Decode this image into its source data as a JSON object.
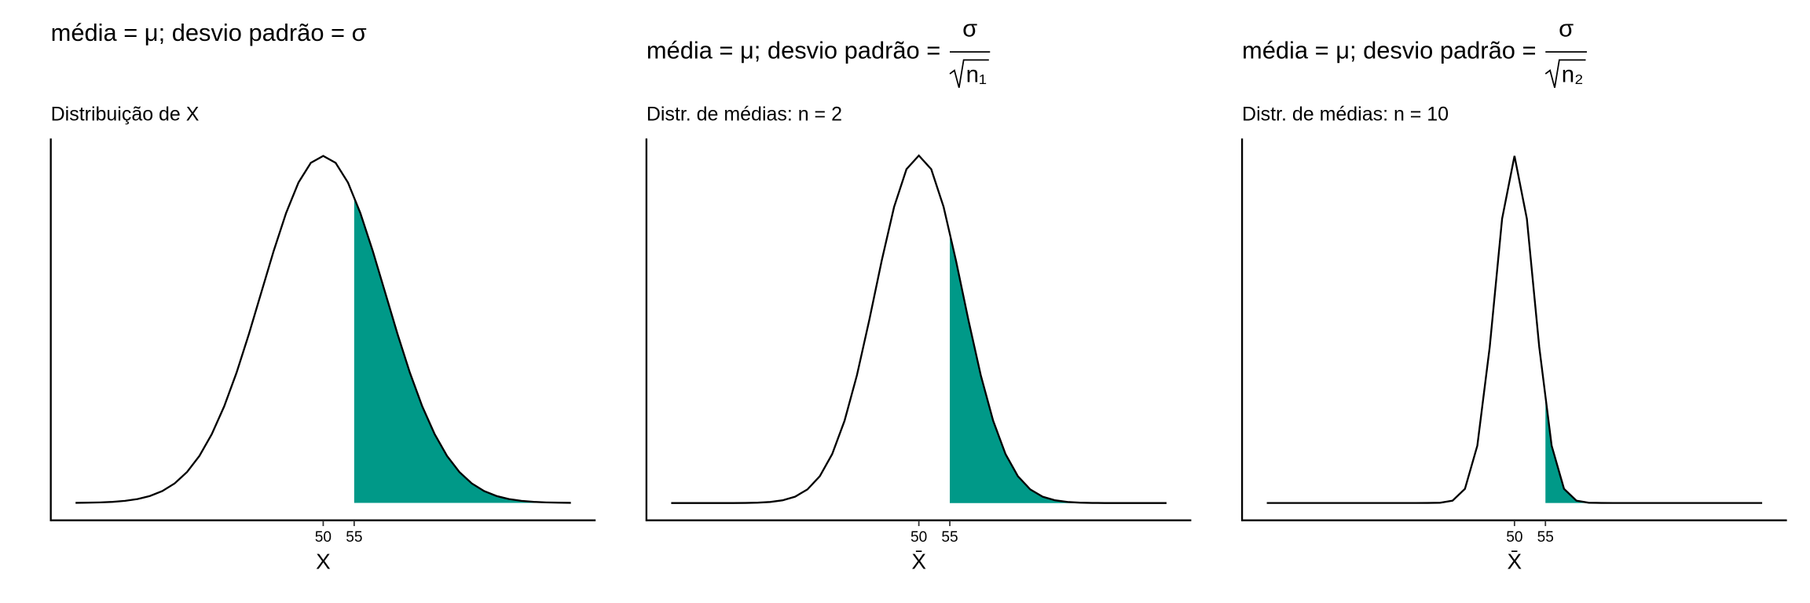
{
  "chart_data": [
    {
      "type": "line",
      "title": "média = μ; desvio padrão = σ",
      "subtitle": "Distribuição de X",
      "x_label": "X",
      "x": [
        10,
        12,
        14,
        16,
        18,
        20,
        22,
        24,
        26,
        28,
        30,
        32,
        34,
        36,
        38,
        40,
        42,
        44,
        46,
        48,
        50,
        52,
        54,
        56,
        58,
        60,
        62,
        64,
        66,
        68,
        70,
        72,
        74,
        76,
        78,
        80,
        82,
        84,
        86,
        88,
        90
      ],
      "values": [
        1e-05,
        3e-05,
        6e-05,
        0.00012,
        0.00024,
        0.00044,
        0.00079,
        0.00136,
        0.00224,
        0.00355,
        0.0054,
        0.0079,
        0.01109,
        0.01497,
        0.01942,
        0.0242,
        0.02897,
        0.03332,
        0.03683,
        0.0391,
        0.03989,
        0.0391,
        0.03683,
        0.03332,
        0.02897,
        0.0242,
        0.01942,
        0.01497,
        0.01109,
        0.0079,
        0.0054,
        0.00355,
        0.00224,
        0.00136,
        0.00079,
        0.00044,
        0.00024,
        0.00012,
        6e-05,
        3e-05,
        1e-05
      ],
      "color": "#000000",
      "fill_from": 55,
      "fill_color": "#009988",
      "xlim": [
        6,
        94
      ],
      "xticks": [
        50,
        55
      ],
      "ylim": [
        -0.002,
        0.0419
      ]
    },
    {
      "type": "line",
      "title": "média = μ; desvio padrão =",
      "title_numerator": "σ",
      "title_denominator": "n₁",
      "subtitle": "Distr. de médias: n = 2",
      "x_label": "X̄",
      "x": [
        10,
        12,
        14,
        16,
        18,
        20,
        22,
        24,
        26,
        28,
        30,
        32,
        34,
        36,
        38,
        40,
        42,
        44,
        46,
        48,
        50,
        52,
        54,
        56,
        58,
        60,
        62,
        64,
        66,
        68,
        70,
        72,
        74,
        76,
        78,
        80,
        82,
        84,
        86,
        88,
        90
      ],
      "values": [
        0,
        0,
        0,
        0,
        0,
        1e-05,
        2e-05,
        7e-05,
        0.00018,
        0.00045,
        0.00103,
        0.00221,
        0.00436,
        0.00795,
        0.01337,
        0.02076,
        0.02975,
        0.03936,
        0.04808,
        0.05421,
        0.05642,
        0.05421,
        0.04808,
        0.03936,
        0.02975,
        0.02076,
        0.01337,
        0.00795,
        0.00436,
        0.00221,
        0.00103,
        0.00045,
        0.00018,
        7e-05,
        2e-05,
        1e-05,
        0,
        0,
        0,
        0,
        0
      ],
      "color": "#000000",
      "fill_from": 55,
      "fill_color": "#009988",
      "xlim": [
        6,
        94
      ],
      "xticks": [
        50,
        55
      ],
      "ylim": [
        -0.0028,
        0.0592
      ]
    },
    {
      "type": "line",
      "title": "média = μ; desvio padrão =",
      "title_numerator": "σ",
      "title_denominator": "n₂",
      "subtitle": "Distr. de médias: n = 10",
      "x_label": "X̄",
      "x": [
        10,
        12,
        14,
        16,
        18,
        20,
        22,
        24,
        26,
        28,
        30,
        32,
        34,
        36,
        38,
        40,
        42,
        44,
        46,
        48,
        50,
        52,
        54,
        56,
        58,
        60,
        62,
        64,
        66,
        68,
        70,
        72,
        74,
        76,
        78,
        80,
        82,
        84,
        86,
        88,
        90
      ],
      "values": [
        0,
        0,
        0,
        0,
        0,
        0,
        0,
        0,
        0,
        0,
        0,
        0,
        0,
        1e-05,
        9e-05,
        0.00085,
        0.00514,
        0.02085,
        0.05669,
        0.10329,
        0.12616,
        0.10329,
        0.05669,
        0.02085,
        0.00514,
        0.00085,
        9e-05,
        1e-05,
        0,
        0,
        0,
        0,
        0,
        0,
        0,
        0,
        0,
        0,
        0,
        0,
        0
      ],
      "color": "#000000",
      "fill_from": 55,
      "fill_color": "#009988",
      "xlim": [
        6,
        94
      ],
      "xticks": [
        50,
        55
      ],
      "ylim": [
        -0.0063,
        0.1325
      ]
    }
  ]
}
